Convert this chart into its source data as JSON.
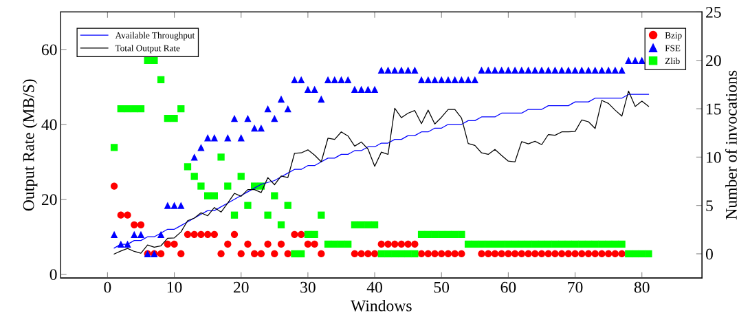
{
  "chart_data": {
    "type": "line",
    "xlabel": "Windows",
    "ylabel": "Output Rate (MB/S)",
    "y2label": "Number of invocations",
    "x": [
      1,
      2,
      3,
      4,
      5,
      6,
      7,
      8,
      9,
      10,
      11,
      12,
      13,
      14,
      15,
      16,
      17,
      18,
      19,
      20,
      21,
      22,
      23,
      24,
      25,
      26,
      27,
      28,
      29,
      30,
      31,
      32,
      33,
      34,
      35,
      36,
      37,
      38,
      39,
      40,
      41,
      42,
      43,
      44,
      45,
      46,
      47,
      48,
      49,
      50,
      51,
      52,
      53,
      54,
      55,
      56,
      57,
      58,
      59,
      60,
      61,
      62,
      63,
      64,
      65,
      66,
      67,
      68,
      69,
      70,
      71,
      72,
      73,
      74,
      75,
      76,
      77,
      78,
      79,
      80,
      81
    ],
    "xlim": [
      -7,
      89
    ],
    "xticks": [
      0,
      10,
      20,
      30,
      40,
      50,
      60,
      70,
      80
    ],
    "ylim": [
      -1,
      70
    ],
    "yticks": [
      0,
      20,
      40,
      60
    ],
    "y2lim": [
      -2.5,
      25
    ],
    "y2ticks": [
      0,
      5,
      10,
      15,
      20,
      25
    ],
    "grid": false,
    "legend": "top left",
    "series": [
      {
        "name": "Available Throughput",
        "marker": "none",
        "line_style": "solid",
        "color": "#0000ff",
        "values": [
          7,
          8,
          8,
          9,
          9,
          10,
          10,
          11,
          12,
          12,
          13,
          14,
          15,
          16,
          17,
          17,
          18,
          19,
          20,
          21,
          22,
          23,
          24,
          24.5,
          25,
          26,
          27,
          28,
          28,
          29,
          29,
          30,
          31,
          31,
          32,
          32,
          33,
          33,
          34,
          34,
          35,
          35,
          36,
          36,
          37,
          37,
          38,
          38,
          39,
          39,
          40,
          40,
          40,
          41,
          41,
          42,
          42,
          42,
          43,
          43,
          43,
          43,
          44,
          44,
          44,
          45,
          45,
          45,
          45,
          46,
          46,
          46,
          47,
          47,
          47,
          47,
          47,
          48,
          48,
          48,
          48
        ]
      },
      {
        "name": "Total Output Rate",
        "marker": "none",
        "line_style": "solid",
        "color": "#000000",
        "values": [
          5.4,
          6.2,
          6.9,
          6.1,
          5.6,
          7.8,
          7.2,
          7.6,
          9.6,
          9.7,
          11.3,
          14.3,
          15.0,
          16.4,
          15.6,
          17.8,
          16.6,
          19.0,
          21.6,
          20.8,
          22.6,
          22.6,
          21.8,
          25.8,
          23.9,
          26.2,
          25.8,
          32.3,
          32.4,
          33.2,
          31.8,
          30.0,
          36.3,
          36.0,
          38.0,
          36.9,
          34.2,
          35.3,
          33.4,
          28.8,
          32.6,
          32.0,
          44.3,
          41.8,
          43.0,
          43.7,
          40.2,
          43.8,
          40.1,
          41.9,
          44.0,
          44.0,
          41.7,
          34.9,
          34.4,
          32.4,
          32.0,
          33.3,
          31.7,
          30.2,
          30.0,
          35.4,
          34.8,
          35.5,
          34.6,
          37.3,
          37.1,
          38.0,
          38.0,
          38.1,
          41.2,
          40.7,
          38.9,
          46.4,
          45.6,
          43.8,
          42.2,
          48.9,
          44.8,
          46.2,
          44.8
        ]
      },
      {
        "name": "Bzip",
        "type": "scatter",
        "axis": "y2",
        "marker": "circle",
        "color": "#ff0000",
        "values": [
          7,
          4,
          4,
          3,
          3,
          0,
          0,
          0,
          1,
          1,
          0,
          2,
          2,
          2,
          2,
          2,
          0,
          1,
          2,
          0,
          1,
          0,
          0,
          1,
          0,
          1,
          0,
          2,
          2,
          1,
          1,
          0,
          null,
          null,
          null,
          null,
          0,
          0,
          0,
          0,
          1,
          1,
          1,
          1,
          1,
          1,
          0,
          0,
          0,
          0,
          0,
          0,
          0,
          null,
          null,
          0,
          0,
          0,
          0,
          0,
          0,
          0,
          0,
          0,
          0,
          0,
          0,
          0,
          0,
          0,
          0,
          0,
          0,
          0,
          0,
          0,
          0,
          null,
          null,
          null,
          null
        ]
      },
      {
        "name": "FSE",
        "type": "scatter",
        "axis": "y2",
        "marker": "triangle",
        "color": "#0000ff",
        "values": [
          2,
          1,
          1,
          2,
          2,
          0,
          0,
          2,
          5,
          5,
          5,
          null,
          10,
          11,
          12,
          12,
          null,
          12,
          14,
          12,
          14,
          13,
          13,
          15,
          14,
          16,
          15,
          18,
          18,
          17,
          17,
          16,
          18,
          18,
          18,
          18,
          17,
          17,
          17,
          17,
          19,
          19,
          19,
          19,
          19,
          19,
          18,
          18,
          18,
          18,
          18,
          18,
          18,
          18,
          18,
          19,
          19,
          19,
          19,
          19,
          19,
          19,
          19,
          19,
          19,
          19,
          19,
          19,
          19,
          19,
          19,
          19,
          19,
          19,
          19,
          19,
          19,
          20,
          20,
          20,
          null
        ]
      },
      {
        "name": "Zlib",
        "type": "scatter",
        "axis": "y2",
        "marker": "square",
        "color": "#00ff00",
        "values": [
          11,
          15,
          15,
          15,
          15,
          20,
          20,
          18,
          14,
          14,
          15,
          9,
          8,
          7,
          6,
          6,
          10,
          7,
          4,
          8,
          5,
          7,
          7,
          4,
          6,
          3,
          5,
          0,
          0,
          2,
          2,
          4,
          1,
          1,
          1,
          1,
          3,
          3,
          3,
          3,
          0,
          0,
          0,
          0,
          0,
          0,
          2,
          2,
          2,
          2,
          2,
          2,
          2,
          1,
          1,
          1,
          1,
          1,
          1,
          1,
          1,
          1,
          1,
          1,
          1,
          1,
          1,
          1,
          1,
          1,
          1,
          1,
          1,
          1,
          1,
          1,
          1,
          0,
          0,
          0,
          0
        ]
      }
    ]
  }
}
